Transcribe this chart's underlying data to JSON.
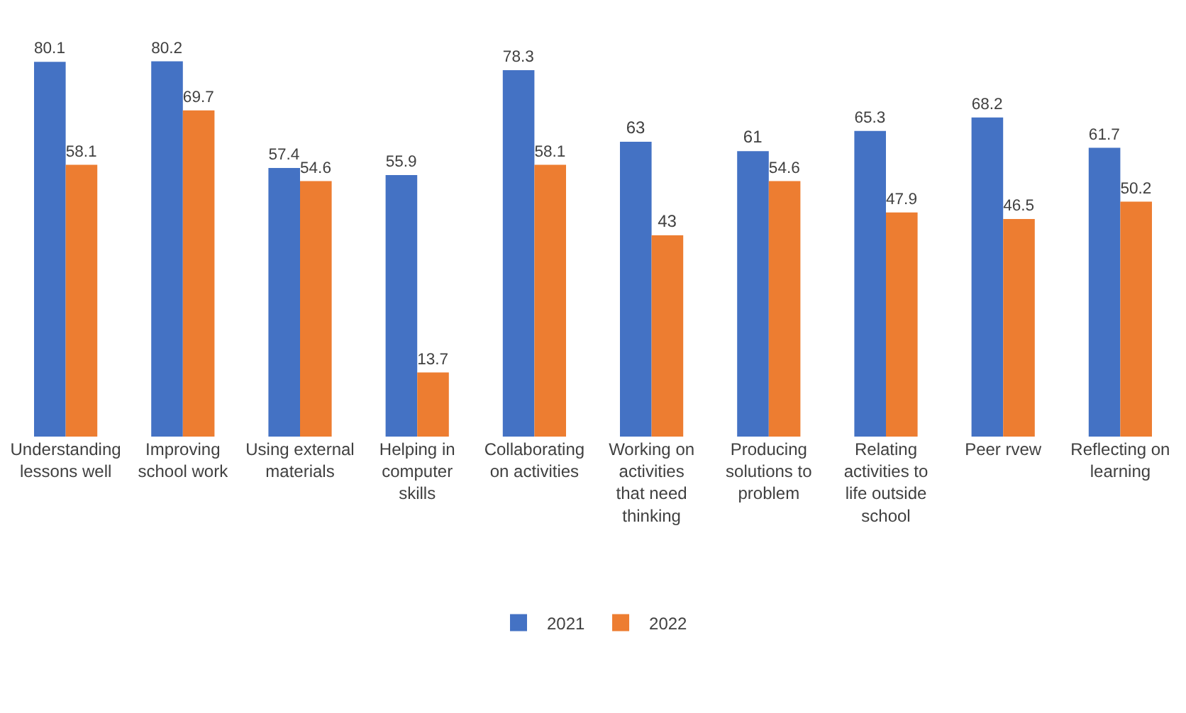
{
  "chart_data": {
    "type": "bar",
    "categories": [
      "Understanding lessons well",
      "Improving school work",
      "Using external materials",
      "Helping in computer skills",
      "Collaborating on activities",
      "Working on activities that need thinking",
      "Producing solutions to problem",
      "Relating activities to life outside school",
      "Peer rvew",
      "Reflecting on learning"
    ],
    "series": [
      {
        "name": "2021",
        "color": "#4472c4",
        "values": [
          80.1,
          80.2,
          57.4,
          55.9,
          78.3,
          63,
          61,
          65.3,
          68.2,
          61.7
        ]
      },
      {
        "name": "2022",
        "color": "#ed7d31",
        "values": [
          58.1,
          69.7,
          54.6,
          13.7,
          58.1,
          43,
          54.6,
          47.9,
          46.5,
          50.2
        ]
      }
    ],
    "data_labels": true,
    "grid": false,
    "legend": "bottom"
  }
}
